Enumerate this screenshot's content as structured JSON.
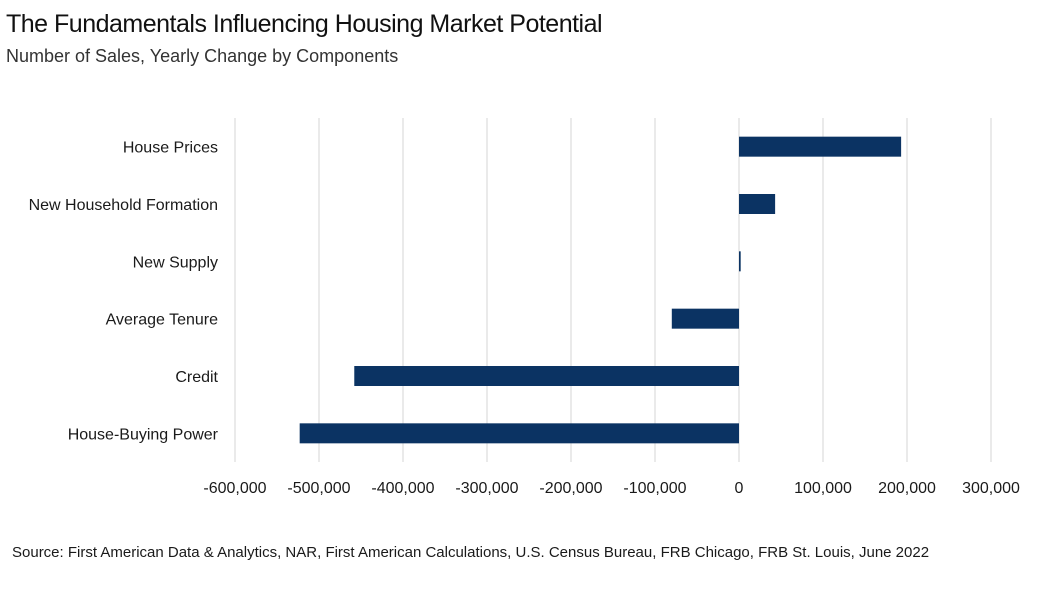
{
  "title": "The Fundamentals Influencing Housing Market Potential",
  "subtitle": "Number of Sales, Yearly Change by Components",
  "source": "Source: First American Data & Analytics, NAR, First American Calculations, U.S. Census Bureau, FRB Chicago, FRB St. Louis, June 2022",
  "chart_data": {
    "type": "bar",
    "orientation": "horizontal",
    "categories": [
      "House Prices",
      "New Household Formation",
      "New Supply",
      "Average Tenure",
      "Credit",
      "House-Buying Power"
    ],
    "values": [
      193000,
      43000,
      2000,
      -80000,
      -458000,
      -523000
    ],
    "xlim": [
      -600000,
      300000
    ],
    "xticks": [
      -600000,
      -500000,
      -400000,
      -300000,
      -200000,
      -100000,
      0,
      100000,
      200000,
      300000
    ],
    "xtick_labels": [
      "-600,000",
      "-500,000",
      "-400,000",
      "-300,000",
      "-200,000",
      "-100,000",
      "0",
      "100,000",
      "200,000",
      "300,000"
    ],
    "grid": "vertical",
    "bar_color": "#0b3363",
    "grid_color": "#d6d6d6"
  }
}
